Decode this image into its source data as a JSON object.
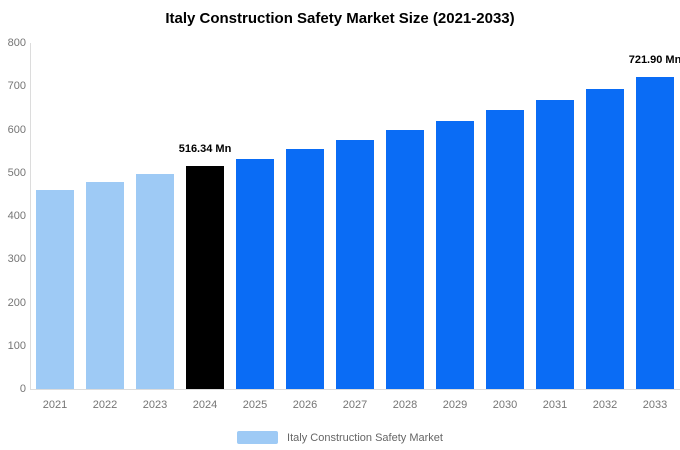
{
  "chart_data": {
    "type": "bar",
    "title": "Italy Construction Safety Market Size (2021-2033)",
    "categories": [
      "2021",
      "2022",
      "2023",
      "2024",
      "2025",
      "2026",
      "2027",
      "2028",
      "2029",
      "2030",
      "2031",
      "2032",
      "2033"
    ],
    "values": [
      460,
      478,
      496,
      516.34,
      532,
      555,
      576,
      598,
      620,
      644,
      668,
      694,
      721.9
    ],
    "colors": [
      "#9ECAF5",
      "#9ECAF5",
      "#9ECAF5",
      "#000000",
      "#0A6CF5",
      "#0A6CF5",
      "#0A6CF5",
      "#0A6CF5",
      "#0A6CF5",
      "#0A6CF5",
      "#0A6CF5",
      "#0A6CF5",
      "#0A6CF5"
    ],
    "ylim": [
      0,
      800
    ],
    "yticks": [
      "0",
      "100",
      "200",
      "300",
      "400",
      "500",
      "600",
      "700",
      "800"
    ],
    "annotations": [
      {
        "index": 3,
        "text": "516.34 Mn"
      },
      {
        "index": 12,
        "text": "721.90 Mn"
      }
    ],
    "legend": {
      "label": "Italy Construction Safety Market",
      "swatch_color": "#9ECAF5"
    },
    "axis_color": "#DCDCDC",
    "tick_label_color": "#757575",
    "grid": false,
    "legend_position": "bottom"
  }
}
